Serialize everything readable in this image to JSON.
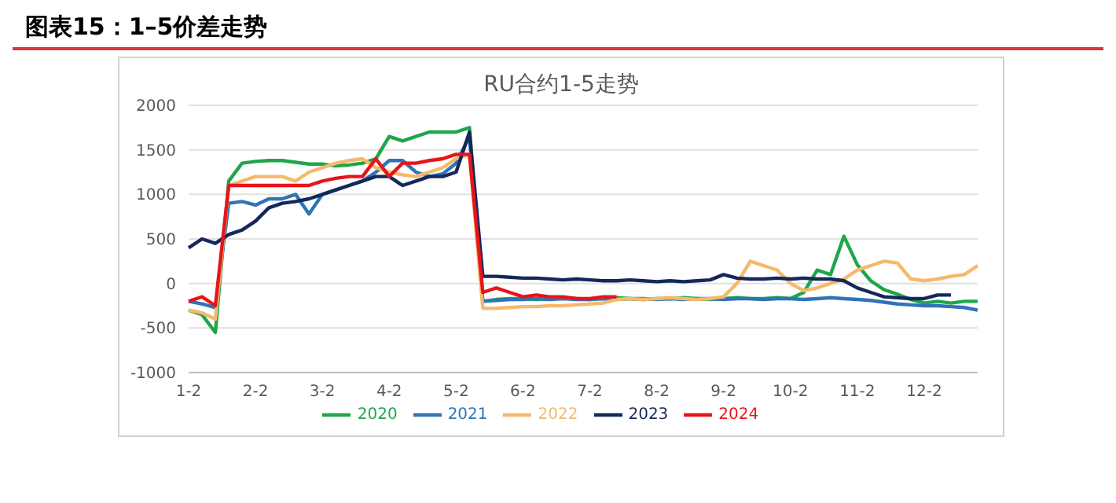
{
  "chart_data": {
    "type": "line",
    "title": "图表15：1–5价差走势",
    "subtitle": "RU合约1-5走势",
    "categories": [
      "1-2",
      null,
      null,
      null,
      null,
      "2-2",
      null,
      null,
      null,
      null,
      "3-2",
      null,
      null,
      null,
      null,
      "4-2",
      null,
      null,
      null,
      null,
      "5-2",
      null,
      null,
      null,
      null,
      "6-2",
      null,
      null,
      null,
      null,
      "7-2",
      null,
      null,
      null,
      null,
      "8-2",
      null,
      null,
      null,
      null,
      "9-2",
      null,
      null,
      null,
      null,
      "10-2",
      null,
      null,
      null,
      null,
      "11-2",
      null,
      null,
      null,
      null,
      "12-2",
      null,
      null,
      null,
      null
    ],
    "series": [
      {
        "name": "2020",
        "color": "#1fa64a",
        "values": [
          -300,
          -350,
          -550,
          1150,
          1350,
          1370,
          1380,
          1380,
          1360,
          1340,
          1340,
          1320,
          1330,
          1350,
          1400,
          1650,
          1600,
          1650,
          1700,
          1700,
          1700,
          1750,
          -200,
          -180,
          -170,
          -170,
          -180,
          -170,
          -160,
          -170,
          -180,
          -170,
          -160,
          -170,
          -180,
          -170,
          -170,
          -160,
          -170,
          -180,
          -170,
          -160,
          -170,
          -170,
          -160,
          -170,
          -100,
          150,
          100,
          530,
          210,
          30,
          -70,
          -120,
          -180,
          -220,
          -200,
          -220,
          -200,
          -200
        ]
      },
      {
        "name": "2021",
        "color": "#2e75b6",
        "values": [
          -200,
          -230,
          -270,
          900,
          920,
          880,
          950,
          950,
          1000,
          780,
          1000,
          1050,
          1100,
          1150,
          1250,
          1380,
          1380,
          1250,
          1200,
          1230,
          1350,
          1650,
          -200,
          -190,
          -180,
          -180,
          -170,
          -180,
          -170,
          -180,
          -180,
          -170,
          -180,
          -170,
          -170,
          -180,
          -170,
          -180,
          -170,
          -170,
          -180,
          -170,
          -170,
          -180,
          -170,
          -170,
          -180,
          -170,
          -160,
          -170,
          -180,
          -190,
          -210,
          -230,
          -240,
          -250,
          -250,
          -260,
          -270,
          -300
        ]
      },
      {
        "name": "2022",
        "color": "#f4b96b",
        "values": [
          -300,
          -330,
          -400,
          1100,
          1150,
          1200,
          1200,
          1200,
          1150,
          1250,
          1300,
          1350,
          1380,
          1400,
          1300,
          1250,
          1220,
          1200,
          1250,
          1300,
          1400,
          1450,
          -280,
          -280,
          -270,
          -260,
          -260,
          -250,
          -250,
          -240,
          -230,
          -220,
          -180,
          -170,
          -180,
          -170,
          -160,
          -170,
          -180,
          -170,
          -150,
          0,
          250,
          200,
          150,
          0,
          -80,
          -50,
          0,
          50,
          150,
          200,
          250,
          230,
          50,
          30,
          50,
          80,
          100,
          200
        ]
      },
      {
        "name": "2023",
        "color": "#14285a",
        "values": [
          400,
          500,
          450,
          550,
          600,
          700,
          850,
          900,
          920,
          950,
          1000,
          1050,
          1100,
          1150,
          1200,
          1200,
          1100,
          1150,
          1200,
          1200,
          1250,
          1700,
          80,
          80,
          70,
          60,
          60,
          50,
          40,
          50,
          40,
          30,
          30,
          40,
          30,
          20,
          30,
          20,
          30,
          40,
          100,
          60,
          50,
          50,
          60,
          50,
          60,
          50,
          50,
          30,
          -50,
          -100,
          -150,
          -160,
          -170,
          -170,
          -130,
          -130,
          null,
          null
        ]
      },
      {
        "name": "2024",
        "color": "#e8141b",
        "values": [
          -200,
          -150,
          -250,
          1100,
          1100,
          1100,
          1100,
          1100,
          1100,
          1100,
          1150,
          1180,
          1200,
          1200,
          1400,
          1200,
          1350,
          1350,
          1380,
          1400,
          1450,
          1450,
          -100,
          -50,
          -100,
          -150,
          -130,
          -150,
          -150,
          -170,
          -170,
          -150,
          -150,
          null,
          null,
          null,
          null,
          null,
          null,
          null,
          null,
          null,
          null,
          null,
          null,
          null,
          null,
          null,
          null,
          null,
          null,
          null,
          null,
          null,
          null,
          null,
          null,
          null,
          null,
          null
        ]
      }
    ],
    "ylim": [
      -1000,
      2000
    ],
    "yticks": [
      -1000,
      -500,
      0,
      500,
      1000,
      1500,
      2000
    ],
    "grid": "y",
    "legend": "bottom",
    "marker": "none",
    "line_style": "solid"
  }
}
